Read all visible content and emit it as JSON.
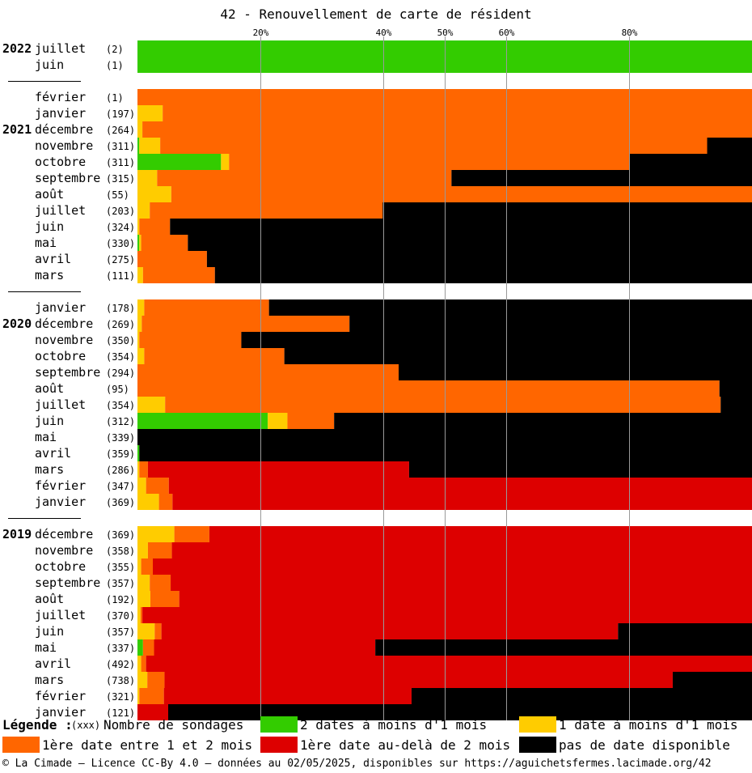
{
  "chart_data": {
    "type": "bar",
    "stacked": true,
    "orientation": "horizontal",
    "title": "42 - Renouvellement de carte de résident",
    "x_ticks": [
      "20%",
      "40%",
      "50%",
      "60%",
      "80%"
    ],
    "x_tick_values": [
      20,
      40,
      50,
      60,
      80
    ],
    "xlim": [
      0,
      100
    ],
    "grid": true,
    "series_keys": [
      "s2",
      "s1",
      "o",
      "r",
      "k"
    ],
    "colors": {
      "s2": "#33cc00",
      "s1": "#ffcc00",
      "o": "#ff6600",
      "r": "#dd0000",
      "k": "#000000"
    },
    "groups": [
      {
        "year": "2022",
        "rows": [
          {
            "month": "juillet",
            "count": "(2)",
            "s2": 100,
            "s1": 0,
            "o": 0,
            "r": 0,
            "k": 0
          },
          {
            "month": "juin",
            "count": "(1)",
            "s2": 100,
            "s1": 0,
            "o": 0,
            "r": 0,
            "k": 0
          }
        ]
      },
      {
        "year": "2021",
        "year_row": 2,
        "rows": [
          {
            "month": "février",
            "count": "(1)",
            "s2": 0,
            "s1": 0,
            "o": 100,
            "r": 0,
            "k": 0
          },
          {
            "month": "janvier",
            "count": "(197)",
            "s2": 0,
            "s1": 4.1,
            "o": 95.9,
            "r": 0,
            "k": 0
          },
          {
            "month": "décembre",
            "count": "(264)",
            "s2": 0,
            "s1": 0.8,
            "o": 99.2,
            "r": 0,
            "k": 0
          },
          {
            "month": "novembre",
            "count": "(311)",
            "s2": 0.3,
            "s1": 3.4,
            "o": 89.0,
            "r": 0,
            "k": 7.3
          },
          {
            "month": "octobre",
            "count": "(311)",
            "s2": 13.6,
            "s1": 1.3,
            "o": 65.1,
            "r": 0,
            "k": 20.0
          },
          {
            "month": "septembre",
            "count": "(315)",
            "s2": 0,
            "s1": 3.2,
            "o": 47.9,
            "r": 0,
            "k": 48.9
          },
          {
            "month": "août",
            "count": "(55)",
            "s2": 0,
            "s1": 5.5,
            "o": 94.5,
            "r": 0,
            "k": 0
          },
          {
            "month": "juillet",
            "count": "(203)",
            "s2": 0,
            "s1": 2.0,
            "o": 37.9,
            "r": 0,
            "k": 60.1
          },
          {
            "month": "juin",
            "count": "(324)",
            "s2": 0,
            "s1": 0.3,
            "o": 5.0,
            "r": 0,
            "k": 94.7
          },
          {
            "month": "mai",
            "count": "(330)",
            "s2": 0.3,
            "s1": 0.3,
            "o": 7.6,
            "r": 0,
            "k": 91.8
          },
          {
            "month": "avril",
            "count": "(275)",
            "s2": 0,
            "s1": 0,
            "o": 11.3,
            "r": 0,
            "k": 88.7
          },
          {
            "month": "mars",
            "count": "(111)",
            "s2": 0,
            "s1": 0.9,
            "o": 11.7,
            "r": 0,
            "k": 87.4
          }
        ]
      },
      {
        "year": "2020",
        "year_row": 1,
        "rows": [
          {
            "month": "janvier",
            "count": "(178)",
            "s2": 0,
            "s1": 1.1,
            "o": 20.3,
            "r": 0,
            "k": 78.6
          },
          {
            "month": "décembre",
            "count": "(269)",
            "s2": 0,
            "s1": 0.7,
            "o": 33.8,
            "r": 0,
            "k": 65.5
          },
          {
            "month": "novembre",
            "count": "(350)",
            "s2": 0,
            "s1": 0.3,
            "o": 16.6,
            "r": 0,
            "k": 83.1
          },
          {
            "month": "octobre",
            "count": "(354)",
            "s2": 0,
            "s1": 1.1,
            "o": 22.8,
            "r": 0,
            "k": 76.1
          },
          {
            "month": "septembre",
            "count": "(294)",
            "s2": 0,
            "s1": 0,
            "o": 42.5,
            "r": 0,
            "k": 57.5
          },
          {
            "month": "août",
            "count": "(95)",
            "s2": 0,
            "s1": 0,
            "o": 94.7,
            "r": 0,
            "k": 5.3
          },
          {
            "month": "juillet",
            "count": "(354)",
            "s2": 0,
            "s1": 4.5,
            "o": 90.4,
            "r": 0,
            "k": 5.1
          },
          {
            "month": "juin",
            "count": "(312)",
            "s2": 21.2,
            "s1": 3.2,
            "o": 7.6,
            "r": 0,
            "k": 68.0
          },
          {
            "month": "mai",
            "count": "(339)",
            "s2": 0,
            "s1": 0,
            "o": 0,
            "r": 0,
            "k": 100
          },
          {
            "month": "avril",
            "count": "(359)",
            "s2": 0.3,
            "s1": 0,
            "o": 0,
            "r": 0,
            "k": 99.7
          },
          {
            "month": "mars",
            "count": "(286)",
            "s2": 0,
            "s1": 0.3,
            "o": 1.4,
            "r": 42.5,
            "k": 55.8
          },
          {
            "month": "février",
            "count": "(347)",
            "s2": 0,
            "s1": 1.4,
            "o": 3.7,
            "r": 94.9,
            "k": 0
          },
          {
            "month": "janvier",
            "count": "(369)",
            "s2": 0,
            "s1": 3.5,
            "o": 2.2,
            "r": 94.3,
            "k": 0
          }
        ]
      },
      {
        "year": "2019",
        "year_row": 0,
        "rows": [
          {
            "month": "décembre",
            "count": "(369)",
            "s2": 0,
            "s1": 6.0,
            "o": 5.7,
            "r": 88.3,
            "k": 0
          },
          {
            "month": "novembre",
            "count": "(358)",
            "s2": 0,
            "s1": 1.7,
            "o": 3.9,
            "r": 94.4,
            "k": 0
          },
          {
            "month": "octobre",
            "count": "(355)",
            "s2": 0,
            "s1": 0.6,
            "o": 1.9,
            "r": 97.5,
            "k": 0
          },
          {
            "month": "septembre",
            "count": "(357)",
            "s2": 0,
            "s1": 2.0,
            "o": 3.4,
            "r": 94.6,
            "k": 0
          },
          {
            "month": "août",
            "count": "(192)",
            "s2": 0,
            "s1": 2.1,
            "o": 4.7,
            "r": 93.2,
            "k": 0
          },
          {
            "month": "juillet",
            "count": "(370)",
            "s2": 0,
            "s1": 0.5,
            "o": 0.3,
            "r": 99.2,
            "k": 0
          },
          {
            "month": "juin",
            "count": "(357)",
            "s2": 0,
            "s1": 2.8,
            "o": 1.1,
            "r": 74.3,
            "k": 21.8
          },
          {
            "month": "mai",
            "count": "(337)",
            "s2": 0.9,
            "s1": 0,
            "o": 1.8,
            "r": 36.0,
            "k": 61.3
          },
          {
            "month": "avril",
            "count": "(492)",
            "s2": 0,
            "s1": 0.6,
            "o": 0.8,
            "r": 98.6,
            "k": 0
          },
          {
            "month": "mars",
            "count": "(738)",
            "s2": 0,
            "s1": 1.6,
            "o": 2.8,
            "r": 82.7,
            "k": 12.9
          },
          {
            "month": "février",
            "count": "(321)",
            "s2": 0,
            "s1": 0.3,
            "o": 4.0,
            "r": 40.3,
            "k": 55.4
          },
          {
            "month": "janvier",
            "count": "(121)",
            "s2": 0,
            "s1": 0,
            "o": 0,
            "r": 5.0,
            "k": 95.0
          }
        ]
      }
    ],
    "legend": {
      "title": "Légende :",
      "count_marker": "(xxx)",
      "count_label": "Nombre de sondages",
      "entries": [
        {
          "key": "s2",
          "label": "2 dates à moins d'1 mois"
        },
        {
          "key": "s1",
          "label": "1 date à moins d'1 mois"
        },
        {
          "key": "o",
          "label": "1ère date entre 1 et 2 mois"
        },
        {
          "key": "r",
          "label": "1ère date au-delà de 2 mois"
        },
        {
          "key": "k",
          "label": "pas de date disponible"
        }
      ]
    }
  },
  "footer": "© La Cimade – Licence CC-By 4.0 – données au 02/05/2025, disponibles sur https://aguichetsfermes.lacimade.org/42"
}
